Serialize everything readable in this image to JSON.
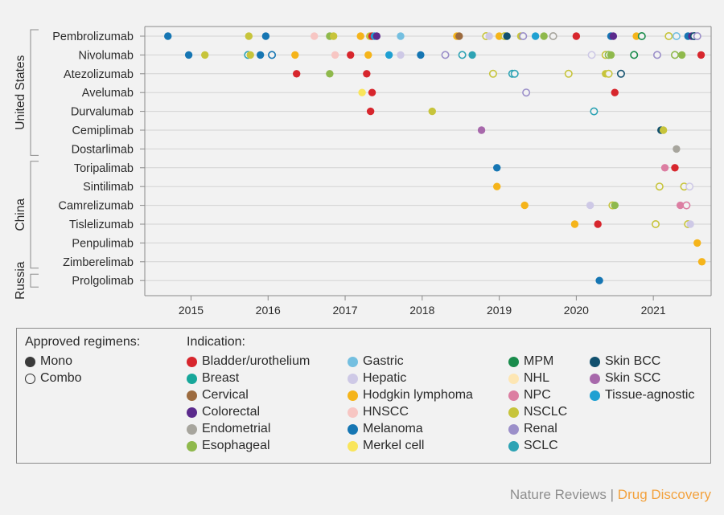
{
  "chart_data": {
    "type": "scatter",
    "x_ticks": [
      "2015",
      "2016",
      "2017",
      "2018",
      "2019",
      "2020",
      "2021"
    ],
    "xlim": [
      2014.4,
      2021.75
    ],
    "groups": [
      {
        "name": "United States",
        "rows": [
          "Pembrolizumab",
          "Nivolumab",
          "Atezolizumab",
          "Avelumab",
          "Durvalumab",
          "Cemiplimab",
          "Dostarlimab"
        ]
      },
      {
        "name": "China",
        "rows": [
          "Toripalimab",
          "Sintilimab",
          "Camrelizumab",
          "Tislelizumab",
          "Penpulimab",
          "Zimberelimab"
        ]
      },
      {
        "name": "Russia",
        "rows": [
          "Prolgolimab"
        ]
      }
    ],
    "legend": {
      "regimen_title": "Approved regimens:",
      "regimens": [
        {
          "key": "mono",
          "label": "Mono"
        },
        {
          "key": "combo",
          "label": "Combo"
        }
      ],
      "indication_title": "Indication:",
      "indications": [
        {
          "key": "bladder",
          "label": "Bladder/urothelium",
          "color": "#d7262d"
        },
        {
          "key": "breast",
          "label": "Breast",
          "color": "#17a79a"
        },
        {
          "key": "cervical",
          "label": "Cervical",
          "color": "#9c6b3f"
        },
        {
          "key": "colorectal",
          "label": "Colorectal",
          "color": "#5b2a8c"
        },
        {
          "key": "endometrial",
          "label": "Endometrial",
          "color": "#a7a59d"
        },
        {
          "key": "esophageal",
          "label": "Esophageal",
          "color": "#8fb94c"
        },
        {
          "key": "gastric",
          "label": "Gastric",
          "color": "#74bfe0"
        },
        {
          "key": "hepatic",
          "label": "Hepatic",
          "color": "#cec9e6"
        },
        {
          "key": "hodgkin",
          "label": "Hodgkin lymphoma",
          "color": "#f5b41a"
        },
        {
          "key": "hnscc",
          "label": "HNSCC",
          "color": "#f7c6c3"
        },
        {
          "key": "melanoma",
          "label": "Melanoma",
          "color": "#1676b3"
        },
        {
          "key": "merkel",
          "label": "Merkel cell",
          "color": "#f9e55b"
        },
        {
          "key": "mpm",
          "label": "MPM",
          "color": "#1a8c4c"
        },
        {
          "key": "nhl",
          "label": "NHL",
          "color": "#fde6b3"
        },
        {
          "key": "npc",
          "label": "NPC",
          "color": "#dc7ea2"
        },
        {
          "key": "nsclc",
          "label": "NSCLC",
          "color": "#c7c43b"
        },
        {
          "key": "renal",
          "label": "Renal",
          "color": "#9b8fc9"
        },
        {
          "key": "sclc",
          "label": "SCLC",
          "color": "#2ea3b4"
        },
        {
          "key": "skinbcc",
          "label": "Skin BCC",
          "color": "#11506e"
        },
        {
          "key": "skinscc",
          "label": "Skin SCC",
          "color": "#a768ab"
        },
        {
          "key": "agnostic",
          "label": "Tissue-agnostic",
          "color": "#1fa0d2"
        }
      ]
    },
    "points": [
      {
        "drug": "Pembrolizumab",
        "x": 2014.7,
        "ind": "melanoma",
        "regimen": "mono"
      },
      {
        "drug": "Pembrolizumab",
        "x": 2015.75,
        "ind": "nsclc",
        "regimen": "mono"
      },
      {
        "drug": "Pembrolizumab",
        "x": 2015.97,
        "ind": "melanoma",
        "regimen": "mono"
      },
      {
        "drug": "Pembrolizumab",
        "x": 2016.6,
        "ind": "hnscc",
        "regimen": "mono"
      },
      {
        "drug": "Pembrolizumab",
        "x": 2016.8,
        "ind": "esophageal",
        "regimen": "mono"
      },
      {
        "drug": "Pembrolizumab",
        "x": 2016.85,
        "ind": "nsclc",
        "regimen": "mono"
      },
      {
        "drug": "Pembrolizumab",
        "x": 2017.2,
        "ind": "hodgkin",
        "regimen": "mono"
      },
      {
        "drug": "Pembrolizumab",
        "x": 2017.32,
        "ind": "nsclc",
        "regimen": "mono"
      },
      {
        "drug": "Pembrolizumab",
        "x": 2017.35,
        "ind": "bladder",
        "regimen": "mono"
      },
      {
        "drug": "Pembrolizumab",
        "x": 2017.38,
        "ind": "agnostic",
        "regimen": "mono"
      },
      {
        "drug": "Pembrolizumab",
        "x": 2017.41,
        "ind": "colorectal",
        "regimen": "mono"
      },
      {
        "drug": "Pembrolizumab",
        "x": 2017.72,
        "ind": "gastric",
        "regimen": "mono"
      },
      {
        "drug": "Pembrolizumab",
        "x": 2018.45,
        "ind": "hodgkin",
        "regimen": "mono"
      },
      {
        "drug": "Pembrolizumab",
        "x": 2018.48,
        "ind": "cervical",
        "regimen": "mono"
      },
      {
        "drug": "Pembrolizumab",
        "x": 2018.83,
        "ind": "nsclc",
        "regimen": "combo"
      },
      {
        "drug": "Pembrolizumab",
        "x": 2018.87,
        "ind": "hepatic",
        "regimen": "mono"
      },
      {
        "drug": "Pembrolizumab",
        "x": 2019.0,
        "ind": "hodgkin",
        "regimen": "mono"
      },
      {
        "drug": "Pembrolizumab",
        "x": 2019.07,
        "ind": "nsclc",
        "regimen": "combo"
      },
      {
        "drug": "Pembrolizumab",
        "x": 2019.1,
        "ind": "skinbcc",
        "regimen": "mono"
      },
      {
        "drug": "Pembrolizumab",
        "x": 2019.28,
        "ind": "nsclc",
        "regimen": "mono"
      },
      {
        "drug": "Pembrolizumab",
        "x": 2019.31,
        "ind": "renal",
        "regimen": "combo"
      },
      {
        "drug": "Pembrolizumab",
        "x": 2019.47,
        "ind": "agnostic",
        "regimen": "mono"
      },
      {
        "drug": "Pembrolizumab",
        "x": 2019.58,
        "ind": "esophageal",
        "regimen": "mono"
      },
      {
        "drug": "Pembrolizumab",
        "x": 2019.7,
        "ind": "endometrial",
        "regimen": "combo"
      },
      {
        "drug": "Pembrolizumab",
        "x": 2020.0,
        "ind": "bladder",
        "regimen": "mono"
      },
      {
        "drug": "Pembrolizumab",
        "x": 2020.45,
        "ind": "melanoma",
        "regimen": "mono"
      },
      {
        "drug": "Pembrolizumab",
        "x": 2020.48,
        "ind": "colorectal",
        "regimen": "mono"
      },
      {
        "drug": "Pembrolizumab",
        "x": 2020.78,
        "ind": "hodgkin",
        "regimen": "mono"
      },
      {
        "drug": "Pembrolizumab",
        "x": 2020.85,
        "ind": "mpm",
        "regimen": "combo"
      },
      {
        "drug": "Pembrolizumab",
        "x": 2021.2,
        "ind": "nsclc",
        "regimen": "combo"
      },
      {
        "drug": "Pembrolizumab",
        "x": 2021.3,
        "ind": "gastric",
        "regimen": "combo"
      },
      {
        "drug": "Pembrolizumab",
        "x": 2021.45,
        "ind": "melanoma",
        "regimen": "mono"
      },
      {
        "drug": "Pembrolizumab",
        "x": 2021.5,
        "ind": "colorectal",
        "regimen": "mono"
      },
      {
        "drug": "Pembrolizumab",
        "x": 2021.53,
        "ind": "skinbcc",
        "regimen": "combo"
      },
      {
        "drug": "Pembrolizumab",
        "x": 2021.57,
        "ind": "renal",
        "regimen": "combo"
      },
      {
        "drug": "Nivolumab",
        "x": 2014.97,
        "ind": "melanoma",
        "regimen": "mono"
      },
      {
        "drug": "Nivolumab",
        "x": 2015.18,
        "ind": "nsclc",
        "regimen": "mono"
      },
      {
        "drug": "Nivolumab",
        "x": 2015.74,
        "ind": "sclc",
        "regimen": "combo"
      },
      {
        "drug": "Nivolumab",
        "x": 2015.77,
        "ind": "nsclc",
        "regimen": "mono"
      },
      {
        "drug": "Nivolumab",
        "x": 2015.9,
        "ind": "melanoma",
        "regimen": "mono"
      },
      {
        "drug": "Nivolumab",
        "x": 2016.05,
        "ind": "melanoma",
        "regimen": "combo"
      },
      {
        "drug": "Nivolumab",
        "x": 2016.35,
        "ind": "hodgkin",
        "regimen": "mono"
      },
      {
        "drug": "Nivolumab",
        "x": 2016.87,
        "ind": "hnscc",
        "regimen": "mono"
      },
      {
        "drug": "Nivolumab",
        "x": 2017.07,
        "ind": "bladder",
        "regimen": "mono"
      },
      {
        "drug": "Nivolumab",
        "x": 2017.3,
        "ind": "hodgkin",
        "regimen": "mono"
      },
      {
        "drug": "Nivolumab",
        "x": 2017.57,
        "ind": "agnostic",
        "regimen": "mono"
      },
      {
        "drug": "Nivolumab",
        "x": 2017.72,
        "ind": "hepatic",
        "regimen": "mono"
      },
      {
        "drug": "Nivolumab",
        "x": 2017.98,
        "ind": "melanoma",
        "regimen": "mono"
      },
      {
        "drug": "Nivolumab",
        "x": 2018.3,
        "ind": "renal",
        "regimen": "combo"
      },
      {
        "drug": "Nivolumab",
        "x": 2018.52,
        "ind": "sclc",
        "regimen": "combo"
      },
      {
        "drug": "Nivolumab",
        "x": 2018.65,
        "ind": "sclc",
        "regimen": "mono"
      },
      {
        "drug": "Nivolumab",
        "x": 2020.2,
        "ind": "hepatic",
        "regimen": "combo"
      },
      {
        "drug": "Nivolumab",
        "x": 2020.38,
        "ind": "nsclc",
        "regimen": "combo"
      },
      {
        "drug": "Nivolumab",
        "x": 2020.42,
        "ind": "esophageal",
        "regimen": "combo"
      },
      {
        "drug": "Nivolumab",
        "x": 2020.45,
        "ind": "esophageal",
        "regimen": "mono"
      },
      {
        "drug": "Nivolumab",
        "x": 2020.75,
        "ind": "mpm",
        "regimen": "combo"
      },
      {
        "drug": "Nivolumab",
        "x": 2021.05,
        "ind": "renal",
        "regimen": "combo"
      },
      {
        "drug": "Nivolumab",
        "x": 2021.28,
        "ind": "esophageal",
        "regimen": "combo"
      },
      {
        "drug": "Nivolumab",
        "x": 2021.37,
        "ind": "esophageal",
        "regimen": "mono"
      },
      {
        "drug": "Nivolumab",
        "x": 2021.62,
        "ind": "bladder",
        "regimen": "mono"
      },
      {
        "drug": "Atezolizumab",
        "x": 2016.37,
        "ind": "bladder",
        "regimen": "mono"
      },
      {
        "drug": "Atezolizumab",
        "x": 2016.8,
        "ind": "esophageal",
        "regimen": "mono"
      },
      {
        "drug": "Atezolizumab",
        "x": 2017.28,
        "ind": "bladder",
        "regimen": "mono"
      },
      {
        "drug": "Atezolizumab",
        "x": 2018.92,
        "ind": "nsclc",
        "regimen": "combo"
      },
      {
        "drug": "Atezolizumab",
        "x": 2019.17,
        "ind": "sclc",
        "regimen": "combo"
      },
      {
        "drug": "Atezolizumab",
        "x": 2019.2,
        "ind": "sclc",
        "regimen": "combo"
      },
      {
        "drug": "Atezolizumab",
        "x": 2019.9,
        "ind": "nsclc",
        "regimen": "combo"
      },
      {
        "drug": "Atezolizumab",
        "x": 2020.38,
        "ind": "nsclc",
        "regimen": "mono"
      },
      {
        "drug": "Atezolizumab",
        "x": 2020.42,
        "ind": "nsclc",
        "regimen": "combo"
      },
      {
        "drug": "Atezolizumab",
        "x": 2020.58,
        "ind": "skinbcc",
        "regimen": "combo"
      },
      {
        "drug": "Avelumab",
        "x": 2017.22,
        "ind": "merkel",
        "regimen": "mono"
      },
      {
        "drug": "Avelumab",
        "x": 2017.35,
        "ind": "bladder",
        "regimen": "mono"
      },
      {
        "drug": "Avelumab",
        "x": 2019.35,
        "ind": "renal",
        "regimen": "combo"
      },
      {
        "drug": "Avelumab",
        "x": 2020.5,
        "ind": "bladder",
        "regimen": "mono"
      },
      {
        "drug": "Durvalumab",
        "x": 2017.33,
        "ind": "bladder",
        "regimen": "mono"
      },
      {
        "drug": "Durvalumab",
        "x": 2018.13,
        "ind": "nsclc",
        "regimen": "mono"
      },
      {
        "drug": "Durvalumab",
        "x": 2020.23,
        "ind": "sclc",
        "regimen": "combo"
      },
      {
        "drug": "Cemiplimab",
        "x": 2018.77,
        "ind": "skinscc",
        "regimen": "mono"
      },
      {
        "drug": "Cemiplimab",
        "x": 2021.1,
        "ind": "skinbcc",
        "regimen": "mono"
      },
      {
        "drug": "Cemiplimab",
        "x": 2021.13,
        "ind": "nsclc",
        "regimen": "mono"
      },
      {
        "drug": "Dostarlimab",
        "x": 2021.3,
        "ind": "endometrial",
        "regimen": "mono"
      },
      {
        "drug": "Toripalimab",
        "x": 2018.97,
        "ind": "melanoma",
        "regimen": "mono"
      },
      {
        "drug": "Toripalimab",
        "x": 2021.15,
        "ind": "npc",
        "regimen": "mono"
      },
      {
        "drug": "Toripalimab",
        "x": 2021.28,
        "ind": "bladder",
        "regimen": "mono"
      },
      {
        "drug": "Sintilimab",
        "x": 2018.97,
        "ind": "hodgkin",
        "regimen": "mono"
      },
      {
        "drug": "Sintilimab",
        "x": 2021.08,
        "ind": "nsclc",
        "regimen": "combo"
      },
      {
        "drug": "Sintilimab",
        "x": 2021.4,
        "ind": "nsclc",
        "regimen": "combo"
      },
      {
        "drug": "Sintilimab",
        "x": 2021.47,
        "ind": "hepatic",
        "regimen": "combo"
      },
      {
        "drug": "Camrelizumab",
        "x": 2019.33,
        "ind": "hodgkin",
        "regimen": "mono"
      },
      {
        "drug": "Camrelizumab",
        "x": 2020.18,
        "ind": "hepatic",
        "regimen": "mono"
      },
      {
        "drug": "Camrelizumab",
        "x": 2020.47,
        "ind": "nsclc",
        "regimen": "combo"
      },
      {
        "drug": "Camrelizumab",
        "x": 2020.5,
        "ind": "esophageal",
        "regimen": "mono"
      },
      {
        "drug": "Camrelizumab",
        "x": 2021.35,
        "ind": "npc",
        "regimen": "mono"
      },
      {
        "drug": "Camrelizumab",
        "x": 2021.43,
        "ind": "npc",
        "regimen": "combo"
      },
      {
        "drug": "Tislelizumab",
        "x": 2019.98,
        "ind": "hodgkin",
        "regimen": "mono"
      },
      {
        "drug": "Tislelizumab",
        "x": 2020.28,
        "ind": "bladder",
        "regimen": "mono"
      },
      {
        "drug": "Tislelizumab",
        "x": 2021.03,
        "ind": "nsclc",
        "regimen": "combo"
      },
      {
        "drug": "Tislelizumab",
        "x": 2021.45,
        "ind": "nsclc",
        "regimen": "combo"
      },
      {
        "drug": "Tislelizumab",
        "x": 2021.48,
        "ind": "hepatic",
        "regimen": "mono"
      },
      {
        "drug": "Penpulimab",
        "x": 2021.57,
        "ind": "hodgkin",
        "regimen": "mono"
      },
      {
        "drug": "Zimberelimab",
        "x": 2021.63,
        "ind": "hodgkin",
        "regimen": "mono"
      },
      {
        "drug": "Prolgolimab",
        "x": 2020.3,
        "ind": "melanoma",
        "regimen": "mono"
      }
    ]
  },
  "footer": {
    "publisher": "Nature Reviews",
    "separator": "|",
    "journal": "Drug Discovery",
    "journal_color": "#f3a23e"
  }
}
